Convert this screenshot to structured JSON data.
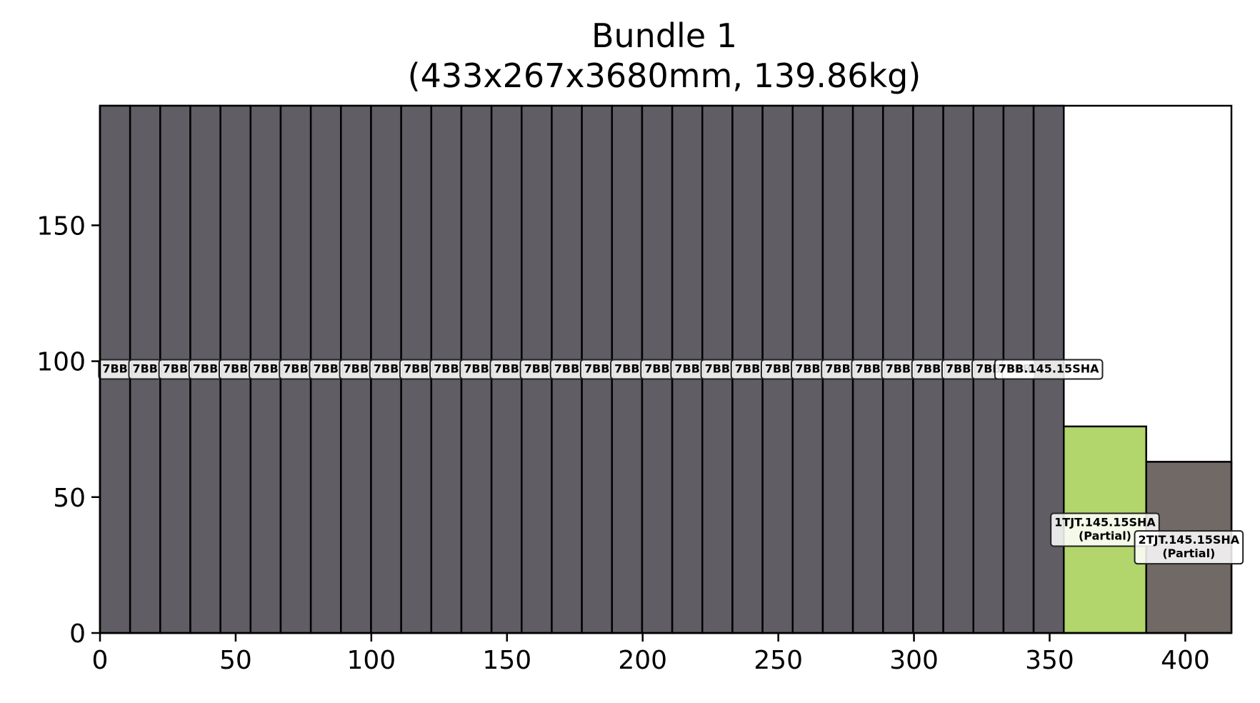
{
  "chart_data": {
    "type": "bar",
    "title": "Bundle 1",
    "subtitle": "(433x267x3680mm, 139.86kg)",
    "xlim": [
      0,
      417
    ],
    "ylim": [
      0,
      194
    ],
    "xticks": [
      "0",
      "50",
      "100",
      "150",
      "200",
      "250",
      "300",
      "350",
      "400"
    ],
    "yticks": [
      "0",
      "50",
      "100",
      "150"
    ],
    "grid": false,
    "bundle_outline": {
      "x0": 0,
      "x1": 417,
      "y0": 0,
      "y1": 194
    },
    "colors": {
      "dark_piece": "#605d65",
      "green_piece": "#b2d66b",
      "brown_piece": "#706965",
      "edge": "#000000"
    },
    "pieces": [
      {
        "x0": 0.0,
        "x1": 11.1,
        "height": 194,
        "color": "#605d65",
        "label": "7BB"
      },
      {
        "x0": 11.1,
        "x1": 22.2,
        "height": 194,
        "color": "#605d65",
        "label": "7BB"
      },
      {
        "x0": 22.2,
        "x1": 33.3,
        "height": 194,
        "color": "#605d65",
        "label": "7BB"
      },
      {
        "x0": 33.3,
        "x1": 44.4,
        "height": 194,
        "color": "#605d65",
        "label": "7BB"
      },
      {
        "x0": 44.4,
        "x1": 55.5,
        "height": 194,
        "color": "#605d65",
        "label": "7BB"
      },
      {
        "x0": 55.5,
        "x1": 66.6,
        "height": 194,
        "color": "#605d65",
        "label": "7BB"
      },
      {
        "x0": 66.6,
        "x1": 77.7,
        "height": 194,
        "color": "#605d65",
        "label": "7BB"
      },
      {
        "x0": 77.7,
        "x1": 88.8,
        "height": 194,
        "color": "#605d65",
        "label": "7BB"
      },
      {
        "x0": 88.8,
        "x1": 99.9,
        "height": 194,
        "color": "#605d65",
        "label": "7BB"
      },
      {
        "x0": 99.9,
        "x1": 111.0,
        "height": 194,
        "color": "#605d65",
        "label": "7BB"
      },
      {
        "x0": 111.0,
        "x1": 122.1,
        "height": 194,
        "color": "#605d65",
        "label": "7BB"
      },
      {
        "x0": 122.1,
        "x1": 133.2,
        "height": 194,
        "color": "#605d65",
        "label": "7BB"
      },
      {
        "x0": 133.2,
        "x1": 144.3,
        "height": 194,
        "color": "#605d65",
        "label": "7BB"
      },
      {
        "x0": 144.3,
        "x1": 155.4,
        "height": 194,
        "color": "#605d65",
        "label": "7BB"
      },
      {
        "x0": 155.4,
        "x1": 166.5,
        "height": 194,
        "color": "#605d65",
        "label": "7BB"
      },
      {
        "x0": 166.5,
        "x1": 177.6,
        "height": 194,
        "color": "#605d65",
        "label": "7BB"
      },
      {
        "x0": 177.6,
        "x1": 188.7,
        "height": 194,
        "color": "#605d65",
        "label": "7BB"
      },
      {
        "x0": 188.7,
        "x1": 199.8,
        "height": 194,
        "color": "#605d65",
        "label": "7BB"
      },
      {
        "x0": 199.8,
        "x1": 210.9,
        "height": 194,
        "color": "#605d65",
        "label": "7BB"
      },
      {
        "x0": 210.9,
        "x1": 222.0,
        "height": 194,
        "color": "#605d65",
        "label": "7BB"
      },
      {
        "x0": 222.0,
        "x1": 233.1,
        "height": 194,
        "color": "#605d65",
        "label": "7BB"
      },
      {
        "x0": 233.1,
        "x1": 244.2,
        "height": 194,
        "color": "#605d65",
        "label": "7BB"
      },
      {
        "x0": 244.2,
        "x1": 255.3,
        "height": 194,
        "color": "#605d65",
        "label": "7BB"
      },
      {
        "x0": 255.3,
        "x1": 266.4,
        "height": 194,
        "color": "#605d65",
        "label": "7BB"
      },
      {
        "x0": 266.4,
        "x1": 277.5,
        "height": 194,
        "color": "#605d65",
        "label": "7BB"
      },
      {
        "x0": 277.5,
        "x1": 288.6,
        "height": 194,
        "color": "#605d65",
        "label": "7BB"
      },
      {
        "x0": 288.6,
        "x1": 299.7,
        "height": 194,
        "color": "#605d65",
        "label": "7BB"
      },
      {
        "x0": 299.7,
        "x1": 310.8,
        "height": 194,
        "color": "#605d65",
        "label": "7BB"
      },
      {
        "x0": 310.8,
        "x1": 321.9,
        "height": 194,
        "color": "#605d65",
        "label": "7BB"
      },
      {
        "x0": 321.9,
        "x1": 333.0,
        "height": 194,
        "color": "#605d65",
        "label": "7BB"
      },
      {
        "x0": 333.0,
        "x1": 344.1,
        "height": 194,
        "color": "#605d65",
        "label": "7BB"
      },
      {
        "x0": 344.1,
        "x1": 355.2,
        "height": 194,
        "color": "#605d65",
        "label": "7BB.145.15SHA"
      },
      {
        "x0": 355.2,
        "x1": 385.6,
        "height": 76,
        "color": "#b2d66b",
        "label": "1TJT.145.15SHA",
        "label2": "(Partial)"
      },
      {
        "x0": 385.6,
        "x1": 417.0,
        "height": 63,
        "color": "#706965",
        "label": "2TJT.145.15SHA",
        "label2": "(Partial)"
      }
    ]
  }
}
